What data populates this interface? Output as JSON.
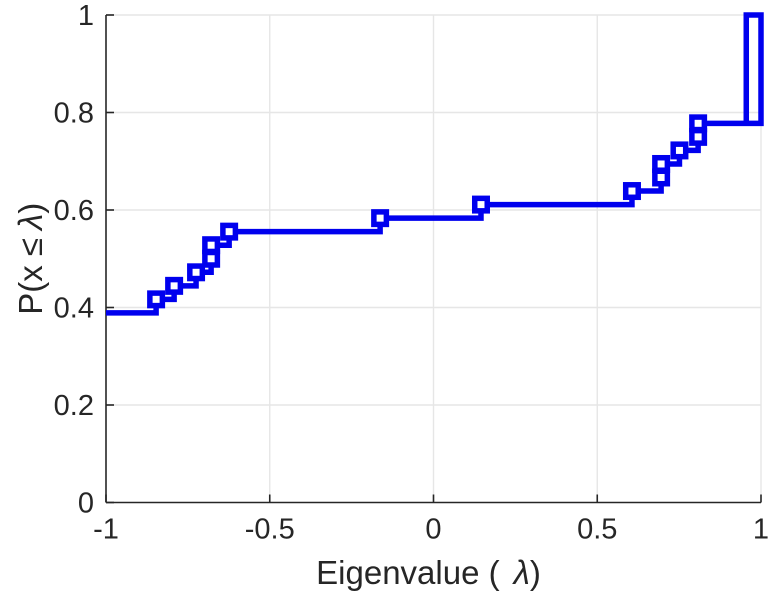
{
  "chart_data": {
    "type": "line",
    "subtype": "ecdf-stairs",
    "title": "",
    "xlabel_prefix": "Eigenvalue (",
    "xlabel_lambda": "λ",
    "xlabel_suffix": ")",
    "ylabel_prefix": "P(x ",
    "ylabel_leq": "≤",
    "ylabel_lambda": "λ",
    "ylabel_suffix": ")",
    "xlim": [
      -1,
      1
    ],
    "ylim": [
      0,
      1
    ],
    "x_ticks": [
      -1,
      -0.5,
      0,
      0.5,
      1
    ],
    "x_tick_labels": [
      "-1",
      "-0.5",
      "0",
      "0.5",
      "1"
    ],
    "y_ticks": [
      0,
      0.2,
      0.4,
      0.6,
      0.8,
      1
    ],
    "y_tick_labels": [
      "0",
      "0.2",
      "0.4",
      "0.6",
      "0.8",
      "1"
    ],
    "grid": true,
    "legend": null,
    "n_eigenvalues": 36,
    "initial_cdf": 0.3889,
    "steps": [
      {
        "x": -0.847,
        "F": 0.4167
      },
      {
        "x": -0.792,
        "F": 0.4444
      },
      {
        "x": -0.725,
        "F": 0.4722
      },
      {
        "x": -0.679,
        "F": 0.5278
      },
      {
        "x": -0.624,
        "F": 0.5556
      },
      {
        "x": -0.163,
        "F": 0.5833
      },
      {
        "x": 0.145,
        "F": 0.6111
      },
      {
        "x": 0.606,
        "F": 0.6389
      },
      {
        "x": 0.695,
        "F": 0.6944
      },
      {
        "x": 0.751,
        "F": 0.7222
      },
      {
        "x": 0.808,
        "F": 0.7778
      }
    ],
    "final_pulse": {
      "base": 0.7778,
      "top": 1.0,
      "rise_x": 0.955,
      "end_x": 1.0
    },
    "markers": [
      {
        "x": -0.847,
        "F": 0.4167
      },
      {
        "x": -0.792,
        "F": 0.4444
      },
      {
        "x": -0.725,
        "F": 0.4722
      },
      {
        "x": -0.679,
        "F": 0.5
      },
      {
        "x": -0.679,
        "F": 0.5278
      },
      {
        "x": -0.624,
        "F": 0.5556
      },
      {
        "x": -0.163,
        "F": 0.5833
      },
      {
        "x": 0.145,
        "F": 0.6111
      },
      {
        "x": 0.606,
        "F": 0.6389
      },
      {
        "x": 0.695,
        "F": 0.6667
      },
      {
        "x": 0.695,
        "F": 0.6944
      },
      {
        "x": 0.751,
        "F": 0.7222
      },
      {
        "x": 0.808,
        "F": 0.75
      },
      {
        "x": 0.808,
        "F": 0.7778
      }
    ],
    "line_color": "#0000EE",
    "axis_color": "#262626",
    "text_color": "#262626",
    "grid_color": "#E6E6E6",
    "background_color": "#FFFFFF"
  }
}
